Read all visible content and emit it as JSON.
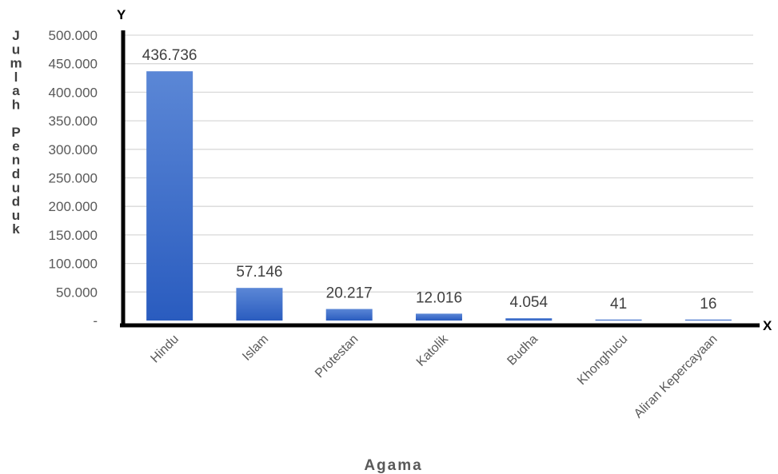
{
  "chart_data": {
    "type": "bar",
    "categories": [
      "Hindu",
      "Islam",
      "Protestan",
      "Katolik",
      "Budha",
      "Khonghucu",
      "Aliran Kepercayaan"
    ],
    "values": [
      436736,
      57146,
      20217,
      12016,
      4054,
      41,
      16
    ],
    "data_labels": [
      "436.736",
      "57.146",
      "20.217",
      "12.016",
      "4.054",
      "41",
      "16"
    ],
    "xlabel": "Agama",
    "ylabel": "Jumlah Penduduk",
    "x_axis_letter": "X",
    "y_axis_letter": "Y",
    "ylim": [
      0,
      500000
    ],
    "y_ticks": [
      0,
      50000,
      100000,
      150000,
      200000,
      250000,
      300000,
      350000,
      400000,
      450000,
      500000
    ],
    "y_tick_labels": [
      "-",
      "50.000",
      "100.000",
      "150.000",
      "200.000",
      "250.000",
      "300.000",
      "350.000",
      "400.000",
      "450.000",
      "500.000"
    ],
    "grid": true,
    "bar_color": "#3a6fcf",
    "legend": "none"
  }
}
